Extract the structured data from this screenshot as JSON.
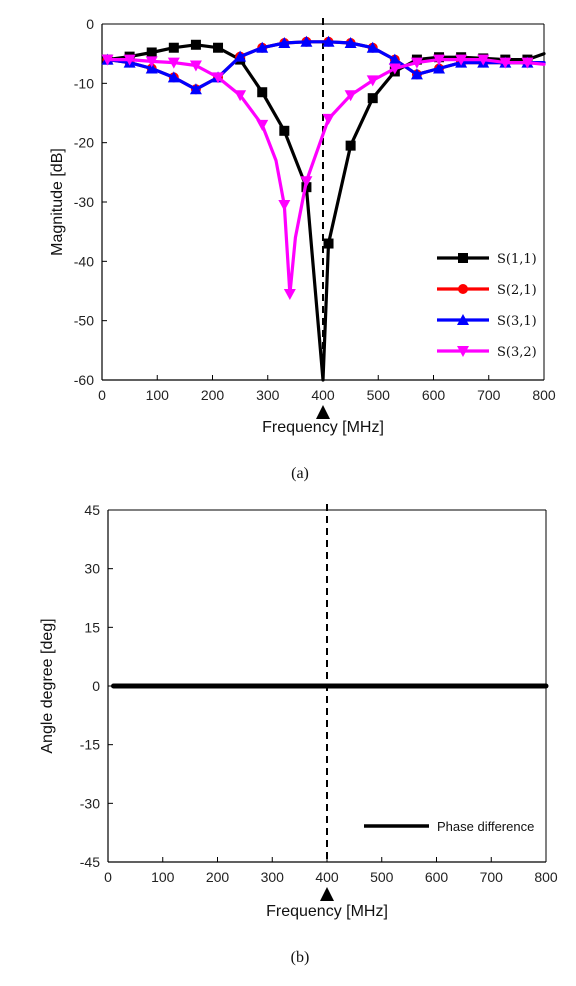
{
  "chart_data": [
    {
      "type": "line",
      "caption": "(a)",
      "xlabel": "Frequency [MHz]",
      "ylabel": "Magnitude [dB]",
      "xlim": [
        0,
        800
      ],
      "ylim": [
        -60,
        0
      ],
      "xticks": [
        0,
        100,
        200,
        300,
        400,
        500,
        600,
        700,
        800
      ],
      "yticks": [
        0,
        -10,
        -20,
        -30,
        -40,
        -50,
        -60
      ],
      "grid": false,
      "legend_position": "bottom-right",
      "marker_line_x": 400,
      "arrow_x": 400,
      "series": [
        {
          "name": "S(1,1)",
          "color": "#000000",
          "marker": "square",
          "x": [
            10,
            50,
            90,
            130,
            170,
            210,
            250,
            290,
            330,
            370,
            400,
            410,
            450,
            490,
            530,
            570,
            610,
            650,
            690,
            730,
            770,
            800
          ],
          "y": [
            -6,
            -5.5,
            -4.8,
            -4,
            -3.5,
            -4,
            -6,
            -11.5,
            -18,
            -27.5,
            -60,
            -37,
            -20.5,
            -12.5,
            -8,
            -6,
            -5.6,
            -5.6,
            -5.8,
            -6,
            -6,
            -5
          ],
          "marker_x": [
            10,
            50,
            90,
            130,
            170,
            210,
            250,
            290,
            330,
            370,
            410,
            450,
            490,
            530,
            570,
            610,
            650,
            690,
            730,
            770
          ]
        },
        {
          "name": "S(2,1)",
          "color": "#ff0000",
          "marker": "circle",
          "x": [
            10,
            50,
            90,
            130,
            170,
            210,
            250,
            290,
            330,
            370,
            410,
            450,
            490,
            530,
            570,
            610,
            650,
            690,
            730,
            770,
            800
          ],
          "y": [
            -6,
            -6.5,
            -7.5,
            -9,
            -11,
            -9,
            -5.5,
            -4,
            -3.2,
            -3,
            -3,
            -3.2,
            -4,
            -6,
            -8.5,
            -7.5,
            -6.5,
            -6.5,
            -6.5,
            -6.5,
            -6.5
          ],
          "marker_x": [
            10,
            50,
            90,
            130,
            170,
            210,
            250,
            290,
            330,
            370,
            410,
            450,
            490,
            530,
            570,
            610,
            650,
            690,
            730,
            770
          ]
        },
        {
          "name": "S(3,1)",
          "color": "#0000ff",
          "marker": "triangle-up",
          "x": [
            10,
            50,
            90,
            130,
            170,
            210,
            250,
            290,
            330,
            370,
            410,
            450,
            490,
            530,
            570,
            610,
            650,
            690,
            730,
            770,
            800
          ],
          "y": [
            -6,
            -6.5,
            -7.5,
            -9,
            -11,
            -9,
            -5.5,
            -4,
            -3.2,
            -3,
            -3,
            -3.2,
            -4,
            -6,
            -8.5,
            -7.5,
            -6.5,
            -6.5,
            -6.5,
            -6.5,
            -6.5
          ],
          "marker_x": [
            10,
            50,
            90,
            130,
            170,
            210,
            250,
            290,
            330,
            370,
            410,
            450,
            490,
            530,
            570,
            610,
            650,
            690,
            730,
            770
          ]
        },
        {
          "name": "S(3,2)",
          "color": "#ff00ff",
          "marker": "triangle-down",
          "x": [
            10,
            50,
            90,
            130,
            170,
            210,
            250,
            290,
            315,
            330,
            340,
            350,
            370,
            410,
            450,
            490,
            530,
            570,
            610,
            650,
            690,
            730,
            770,
            800
          ],
          "y": [
            -6,
            -6,
            -6.3,
            -6.5,
            -7,
            -9,
            -12,
            -17,
            -23,
            -30.5,
            -45.5,
            -36,
            -26.5,
            -16,
            -12,
            -9.5,
            -7.5,
            -6.5,
            -6,
            -6,
            -6,
            -6.5,
            -6.5,
            -6.8
          ],
          "marker_x": [
            10,
            50,
            90,
            130,
            170,
            210,
            250,
            290,
            330,
            340,
            370,
            410,
            450,
            490,
            530,
            570,
            610,
            650,
            690,
            730,
            770
          ]
        }
      ]
    },
    {
      "type": "line",
      "caption": "(b)",
      "xlabel": "Frequency [MHz]",
      "ylabel": "Angle degree [deg]",
      "xlim": [
        0,
        800
      ],
      "ylim": [
        -45,
        45
      ],
      "xticks": [
        0,
        100,
        200,
        300,
        400,
        500,
        600,
        700,
        800
      ],
      "yticks": [
        45,
        30,
        15,
        0,
        -15,
        -30,
        -45
      ],
      "grid": false,
      "legend_position": "bottom-right",
      "marker_line_x": 400,
      "arrow_x": 400,
      "series": [
        {
          "name": "Phase difference",
          "color": "#000000",
          "x": [
            10,
            800
          ],
          "y": [
            0,
            0
          ]
        }
      ]
    }
  ]
}
